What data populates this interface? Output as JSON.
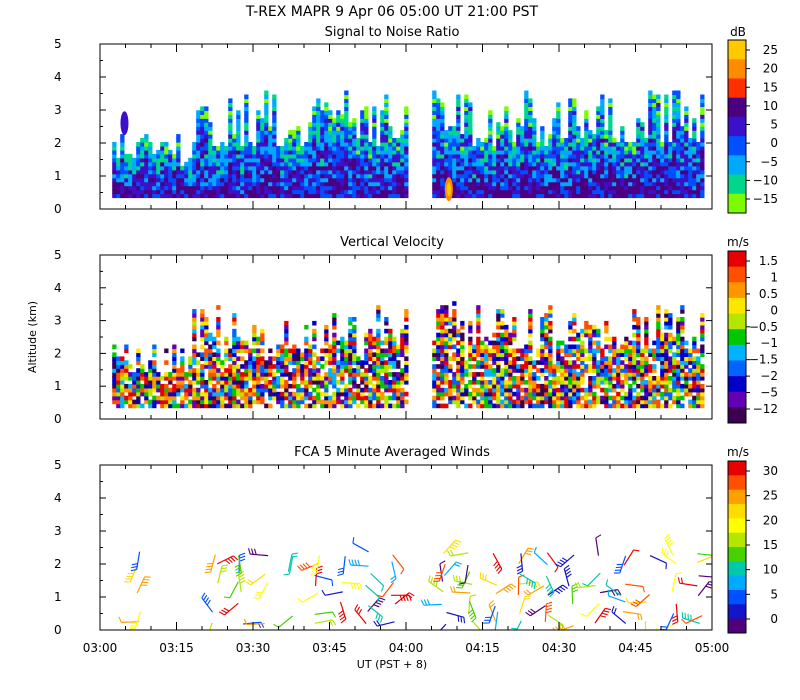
{
  "header": {
    "title": "T-REX  MAPR  9 Apr 06  05:00 UT  21:00  PST"
  },
  "axes": {
    "xlabel": "UT  (PST + 8)",
    "ylabel": "Altitude (km)",
    "xticks": [
      "03:00",
      "03:15",
      "03:30",
      "03:45",
      "04:00",
      "04:15",
      "04:30",
      "04:45",
      "05:00"
    ],
    "xrange_hours": [
      3.0,
      5.0
    ],
    "yticks": [
      "0",
      "1",
      "2",
      "3",
      "4",
      "5"
    ],
    "yrange_km": [
      0,
      5
    ]
  },
  "panels": [
    {
      "title": "Signal to Noise Ratio",
      "type": "heatmap",
      "colorbar": {
        "unit": "dB",
        "labels": [
          "25",
          "20",
          "15",
          "10",
          "5",
          "0",
          "−5",
          "−10",
          "−15"
        ],
        "colors": [
          "#ffc800",
          "#ff8c00",
          "#ff3000",
          "#4b0082",
          "#3c10c8",
          "#0050ff",
          "#00a8ff",
          "#00d78c",
          "#7cfc00"
        ]
      }
    },
    {
      "title": "Vertical Velocity",
      "type": "heatmap",
      "colorbar": {
        "unit": "m/s",
        "labels": [
          "1.5",
          "1",
          "0.5",
          "0",
          "−0.5",
          "−1",
          "−1.5",
          "−2",
          "−5",
          "−12"
        ],
        "colors": [
          "#e60000",
          "#ff5000",
          "#ff9600",
          "#ffe600",
          "#b4e600",
          "#00c800",
          "#00b4ff",
          "#0064ff",
          "#0000c8",
          "#6400b4",
          "#3c0050"
        ]
      }
    },
    {
      "title": "FCA 5 Minute Averaged Winds",
      "type": "wind-barbs",
      "colorbar": {
        "unit": "m/s",
        "labels": [
          "30",
          "25",
          "20",
          "15",
          "10",
          "5",
          "0"
        ],
        "colors": [
          "#e60000",
          "#ff5000",
          "#ffa000",
          "#ffdc00",
          "#ffff00",
          "#b4e600",
          "#46d200",
          "#00c8aa",
          "#00aaff",
          "#0050ff",
          "#1414c8",
          "#500078"
        ]
      }
    }
  ],
  "chart_data": [
    {
      "type": "heatmap",
      "title": "Signal to Noise Ratio",
      "xlabel": "UT  (PST + 8)",
      "ylabel": "Altitude (km)",
      "xlim": [
        3.0,
        5.0
      ],
      "ylim": [
        0,
        5
      ],
      "zunit": "dB",
      "zlevels": [
        -15,
        -10,
        -5,
        0,
        5,
        10,
        15,
        20,
        25
      ],
      "data_gaps_hours": [
        [
          4.0,
          4.08
        ]
      ],
      "coverage_km": [
        0.35,
        3.6
      ],
      "features": [
        {
          "time": 3.08,
          "alt_km": 2.6,
          "snr_db": 10
        },
        {
          "time": 4.14,
          "alt_km": 0.6,
          "snr_db": 25
        }
      ]
    },
    {
      "type": "heatmap",
      "title": "Vertical Velocity",
      "xlabel": "UT  (PST + 8)",
      "ylabel": "Altitude (km)",
      "xlim": [
        3.0,
        5.0
      ],
      "ylim": [
        0,
        5
      ],
      "zunit": "m/s",
      "zlevels": [
        -12,
        -5,
        -2,
        -1.5,
        -1,
        -0.5,
        0,
        0.5,
        1,
        1.5
      ],
      "data_gaps_hours": [
        [
          4.0,
          4.08
        ]
      ],
      "coverage_km": [
        0.35,
        3.5
      ]
    },
    {
      "type": "wind-barbs",
      "title": "FCA 5 Minute Averaged Winds",
      "xlabel": "UT  (PST + 8)",
      "ylabel": "Altitude (km)",
      "xlim": [
        3.0,
        5.0
      ],
      "ylim": [
        0,
        5
      ],
      "speed_unit": "m/s",
      "speed_range": [
        0,
        30
      ],
      "altitudes_km": [
        0.2,
        0.5,
        0.8,
        1.1,
        1.4,
        1.7,
        2.0,
        2.3
      ],
      "times_hours": [
        3.125,
        3.375,
        3.458,
        3.542,
        3.625,
        3.708,
        3.792,
        3.875,
        3.958,
        4.125,
        4.208,
        4.292,
        4.375,
        4.458,
        4.542,
        4.625,
        4.708,
        4.792,
        4.875,
        4.958
      ]
    }
  ]
}
